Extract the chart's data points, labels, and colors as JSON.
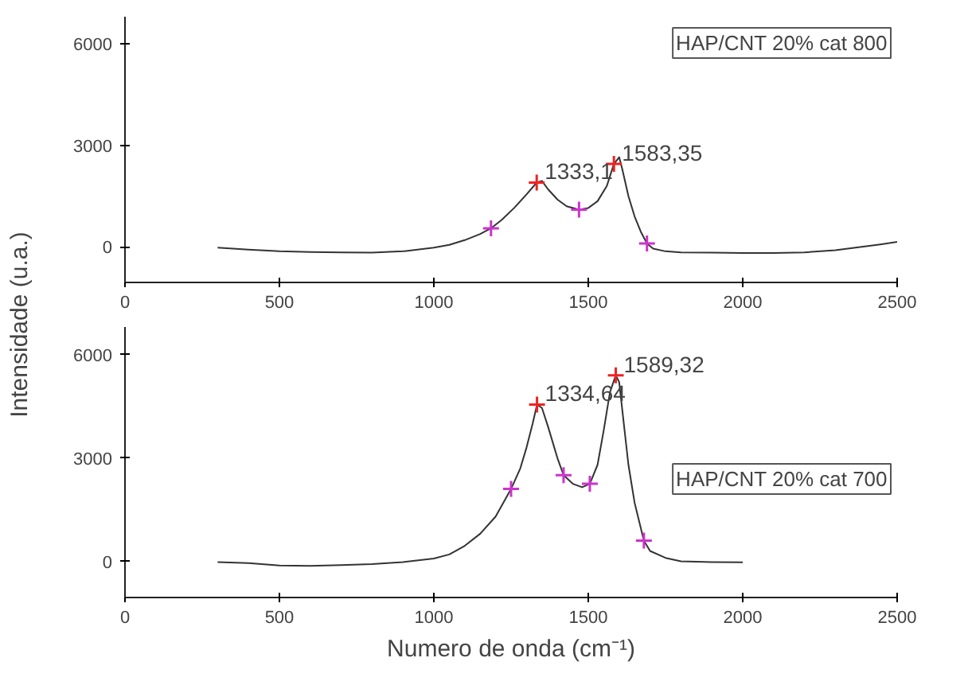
{
  "chart_data": [
    {
      "type": "line",
      "ylabel": "Intensidade (u.a.)",
      "xlim": [
        0,
        2500
      ],
      "ylim": [
        -1050,
        6800
      ],
      "xticks": [
        0,
        500,
        1000,
        1500,
        2000,
        2500
      ],
      "yticks": [
        0,
        3000,
        6000
      ],
      "grid": false,
      "legend": "top right",
      "series": [
        {
          "name": "HAP/CNT 20% cat 800",
          "color": "#333333",
          "x": [
            300,
            400,
            500,
            600,
            700,
            800,
            900,
            1000,
            1050,
            1100,
            1150,
            1185,
            1220,
            1260,
            1300,
            1333,
            1350,
            1370,
            1400,
            1430,
            1470,
            1500,
            1530,
            1560,
            1583,
            1600,
            1610,
            1630,
            1650,
            1670,
            1690,
            1710,
            1750,
            1800,
            1900,
            2000,
            2100,
            2200,
            2300,
            2400,
            2450,
            2500
          ],
          "values": [
            -20,
            -80,
            -130,
            -150,
            -160,
            -170,
            -130,
            -20,
            60,
            200,
            380,
            550,
            800,
            1150,
            1550,
            1900,
            1950,
            1700,
            1400,
            1200,
            1100,
            1150,
            1350,
            1800,
            2450,
            2650,
            2300,
            1500,
            900,
            450,
            100,
            -50,
            -130,
            -160,
            -170,
            -180,
            -180,
            -160,
            -100,
            20,
            80,
            150
          ]
        },
        {
          "type": "scatter",
          "marker": "cross",
          "color": "#ee2222",
          "x": [
            1333,
            1583
          ],
          "values": [
            1900,
            2450
          ]
        },
        {
          "type": "scatter",
          "marker": "cross",
          "color": "#cc33cc",
          "x": [
            1185,
            1470,
            1690
          ],
          "values": [
            550,
            1100,
            100
          ]
        }
      ],
      "annotations": [
        {
          "text": "1333,1",
          "x": 1333,
          "y": 1900
        },
        {
          "text": "1583,35",
          "x": 1583,
          "y": 2450
        }
      ]
    },
    {
      "type": "line",
      "xlabel": "Numero de onda (cm⁻¹)",
      "xlim": [
        0,
        2500
      ],
      "ylim": [
        -1050,
        6800
      ],
      "xticks": [
        0,
        500,
        1000,
        1500,
        2000,
        2500
      ],
      "yticks": [
        0,
        3000,
        6000
      ],
      "grid": false,
      "legend": "right",
      "series": [
        {
          "name": "HAP/CNT 20% cat 700",
          "color": "#333333",
          "x": [
            300,
            400,
            500,
            600,
            700,
            800,
            900,
            1000,
            1050,
            1100,
            1150,
            1200,
            1250,
            1280,
            1300,
            1320,
            1334,
            1350,
            1370,
            1400,
            1420,
            1450,
            1480,
            1505,
            1530,
            1550,
            1570,
            1589,
            1600,
            1615,
            1630,
            1650,
            1680,
            1700,
            1750,
            1800,
            1900,
            2000
          ],
          "values": [
            -20,
            -50,
            -120,
            -130,
            -110,
            -80,
            -20,
            80,
            200,
            450,
            800,
            1300,
            2100,
            2700,
            3300,
            4000,
            4550,
            4450,
            3900,
            3000,
            2500,
            2250,
            2150,
            2250,
            2800,
            3800,
            4900,
            5400,
            5200,
            4000,
            2800,
            1700,
            600,
            300,
            100,
            0,
            -20,
            -30
          ]
        },
        {
          "type": "scatter",
          "marker": "cross",
          "color": "#ee2222",
          "x": [
            1334,
            1589
          ],
          "values": [
            4550,
            5400
          ]
        },
        {
          "type": "scatter",
          "marker": "cross",
          "color": "#cc33cc",
          "x": [
            1250,
            1420,
            1505,
            1680
          ],
          "values": [
            2100,
            2500,
            2250,
            600
          ]
        }
      ],
      "annotations": [
        {
          "text": "1334,64",
          "x": 1334,
          "y": 4550
        },
        {
          "text": "1589,32",
          "x": 1589,
          "y": 5400
        }
      ]
    }
  ]
}
